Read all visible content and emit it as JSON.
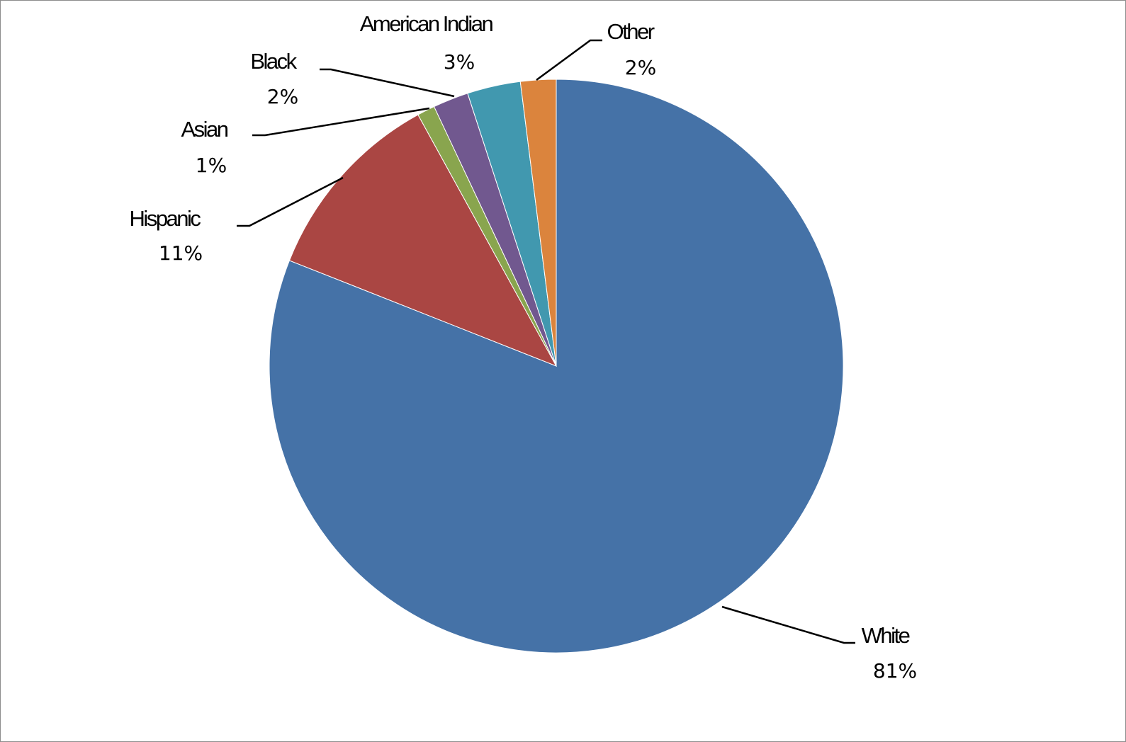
{
  "chart_data": {
    "type": "pie",
    "start_angle": "12 o'clock",
    "direction": "clockwise",
    "slices": [
      {
        "label": "White",
        "value": 81,
        "display": "81%",
        "color": "#4572A7"
      },
      {
        "label": "Hispanic",
        "value": 11,
        "display": "11%",
        "color": "#AA4643"
      },
      {
        "label": "Asian",
        "value": 1,
        "display": "1%",
        "color": "#89A54E"
      },
      {
        "label": "Black",
        "value": 2,
        "display": "2%",
        "color": "#71588F"
      },
      {
        "label": "American Indian",
        "value": 3,
        "display": "3%",
        "color": "#4198AF"
      },
      {
        "label": "Other",
        "value": 2,
        "display": "2%",
        "color": "#DB843D"
      }
    ],
    "legend": "none",
    "data_labels": "outside with leader lines"
  }
}
